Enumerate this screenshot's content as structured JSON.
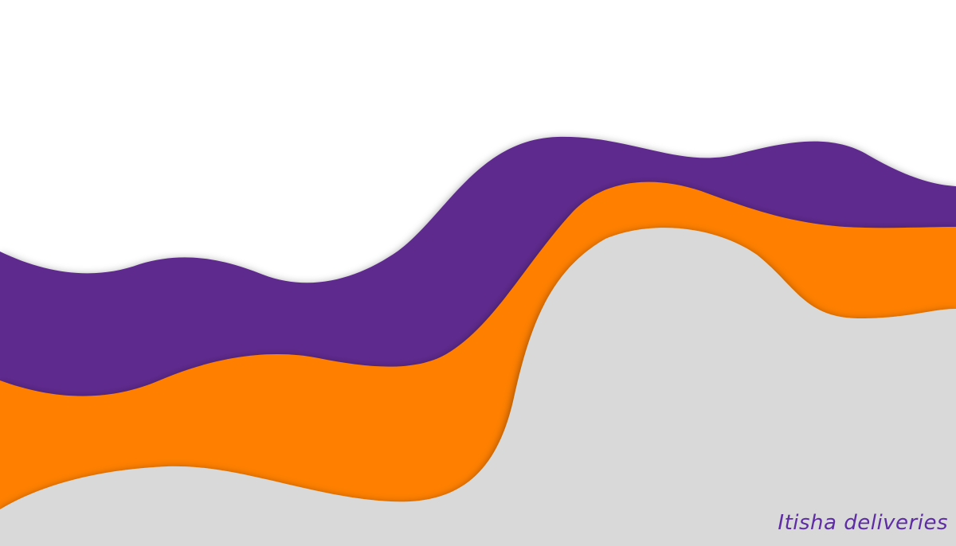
{
  "brand": {
    "text": "Itisha deliveries"
  },
  "colors": {
    "background": "#ffffff",
    "purple_band": "#5f2b8e",
    "orange_band": "#ff8000",
    "gray_band": "#d9d9d9",
    "text": "#5e2ca5"
  }
}
